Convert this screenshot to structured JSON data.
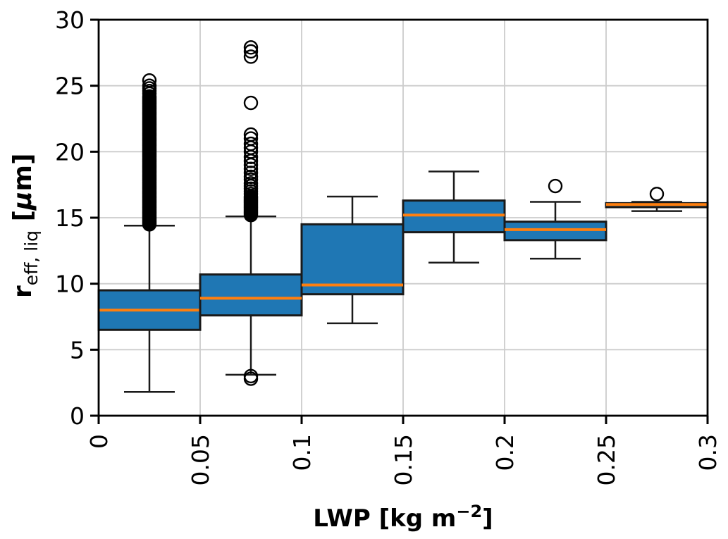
{
  "chart_data": {
    "type": "boxplot",
    "title": "",
    "xlabel": {
      "plain": "LWP [kg m−2]",
      "prefix": "LWP [kg m",
      "superscript": "−2",
      "suffix": "]"
    },
    "ylabel": {
      "plain": "r_eff,liq [μm]",
      "base": "r",
      "subscript": "eff, liq",
      "open_bracket": " [",
      "mu": "μ",
      "close": "m]"
    },
    "xlim": [
      0,
      0.3
    ],
    "ylim": [
      0,
      30
    ],
    "xticks": [
      0,
      0.05,
      0.1,
      0.15,
      0.2,
      0.25,
      0.3
    ],
    "xtick_labels": [
      "0",
      "0.05",
      "0.1",
      "0.15",
      "0.2",
      "0.25",
      "0.3"
    ],
    "yticks": [
      0,
      5,
      10,
      15,
      20,
      25,
      30
    ],
    "ytick_labels": [
      "0",
      "5",
      "10",
      "15",
      "20",
      "25",
      "30"
    ],
    "grid": true,
    "legend": null,
    "box_width": 0.025,
    "colors": {
      "box_fill": "#1f77b4",
      "box_edge": "#1a1a1a",
      "median": "#ff7f0e",
      "whisker": "#1a1a1a",
      "outlier_edge": "#000000",
      "grid": "#cccccc",
      "spine": "#000000",
      "text": "#000000",
      "background": "#ffffff"
    },
    "boxes": [
      {
        "x": 0.025,
        "whisker_low": 1.8,
        "q1": 6.5,
        "median": 8.0,
        "q3": 9.5,
        "whisker_high": 14.4,
        "outliers": [
          14.5,
          14.6,
          14.7,
          14.8,
          14.9,
          15.0,
          15.1,
          15.2,
          15.3,
          15.4,
          15.5,
          15.6,
          15.7,
          15.8,
          15.9,
          16.0,
          16.1,
          16.2,
          16.3,
          16.4,
          16.5,
          16.6,
          16.7,
          16.8,
          16.9,
          17.0,
          17.1,
          17.2,
          17.3,
          17.4,
          17.5,
          17.6,
          17.7,
          17.8,
          17.9,
          18.0,
          18.1,
          18.2,
          18.3,
          18.4,
          18.5,
          18.6,
          18.7,
          18.8,
          18.9,
          19.0,
          19.1,
          19.2,
          19.3,
          19.4,
          19.5,
          19.6,
          19.7,
          19.8,
          19.9,
          20.0,
          20.1,
          20.2,
          20.3,
          20.4,
          20.5,
          20.6,
          20.7,
          20.8,
          20.9,
          21.0,
          21.1,
          21.2,
          21.3,
          21.4,
          21.5,
          21.6,
          21.7,
          21.8,
          21.9,
          22.0,
          22.1,
          22.2,
          22.3,
          22.4,
          22.5,
          22.6,
          22.7,
          22.8,
          22.9,
          23.0,
          23.1,
          23.2,
          23.3,
          23.4,
          23.5,
          23.6,
          23.7,
          23.8,
          23.9,
          24.0,
          24.1,
          24.2,
          24.4,
          24.6,
          24.8,
          25.0,
          25.4
        ]
      },
      {
        "x": 0.075,
        "whisker_low": 3.1,
        "q1": 7.6,
        "median": 8.9,
        "q3": 10.7,
        "whisker_high": 15.1,
        "outliers": [
          2.8,
          3.0,
          15.2,
          15.3,
          15.4,
          15.5,
          15.6,
          15.7,
          15.8,
          15.9,
          16.0,
          16.1,
          16.2,
          16.3,
          16.4,
          16.5,
          16.6,
          16.8,
          17.0,
          17.2,
          17.4,
          17.6,
          17.9,
          18.1,
          18.4,
          18.7,
          19.0,
          19.3,
          19.6,
          20.0,
          20.3,
          20.6,
          21.0,
          21.3,
          23.7,
          27.2,
          27.6,
          27.9
        ]
      },
      {
        "x": 0.125,
        "whisker_low": 7.0,
        "q1": 9.2,
        "median": 9.9,
        "q3": 14.5,
        "whisker_high": 16.6,
        "outliers": []
      },
      {
        "x": 0.175,
        "whisker_low": 11.6,
        "q1": 13.9,
        "median": 15.2,
        "q3": 16.3,
        "whisker_high": 18.5,
        "outliers": []
      },
      {
        "x": 0.225,
        "whisker_low": 11.9,
        "q1": 13.3,
        "median": 14.1,
        "q3": 14.7,
        "whisker_high": 16.2,
        "outliers": [
          17.4
        ]
      },
      {
        "x": 0.275,
        "whisker_low": 15.5,
        "q1": 15.8,
        "median": 16.0,
        "q3": 16.1,
        "whisker_high": 16.2,
        "outliers": [
          16.8
        ]
      }
    ]
  }
}
